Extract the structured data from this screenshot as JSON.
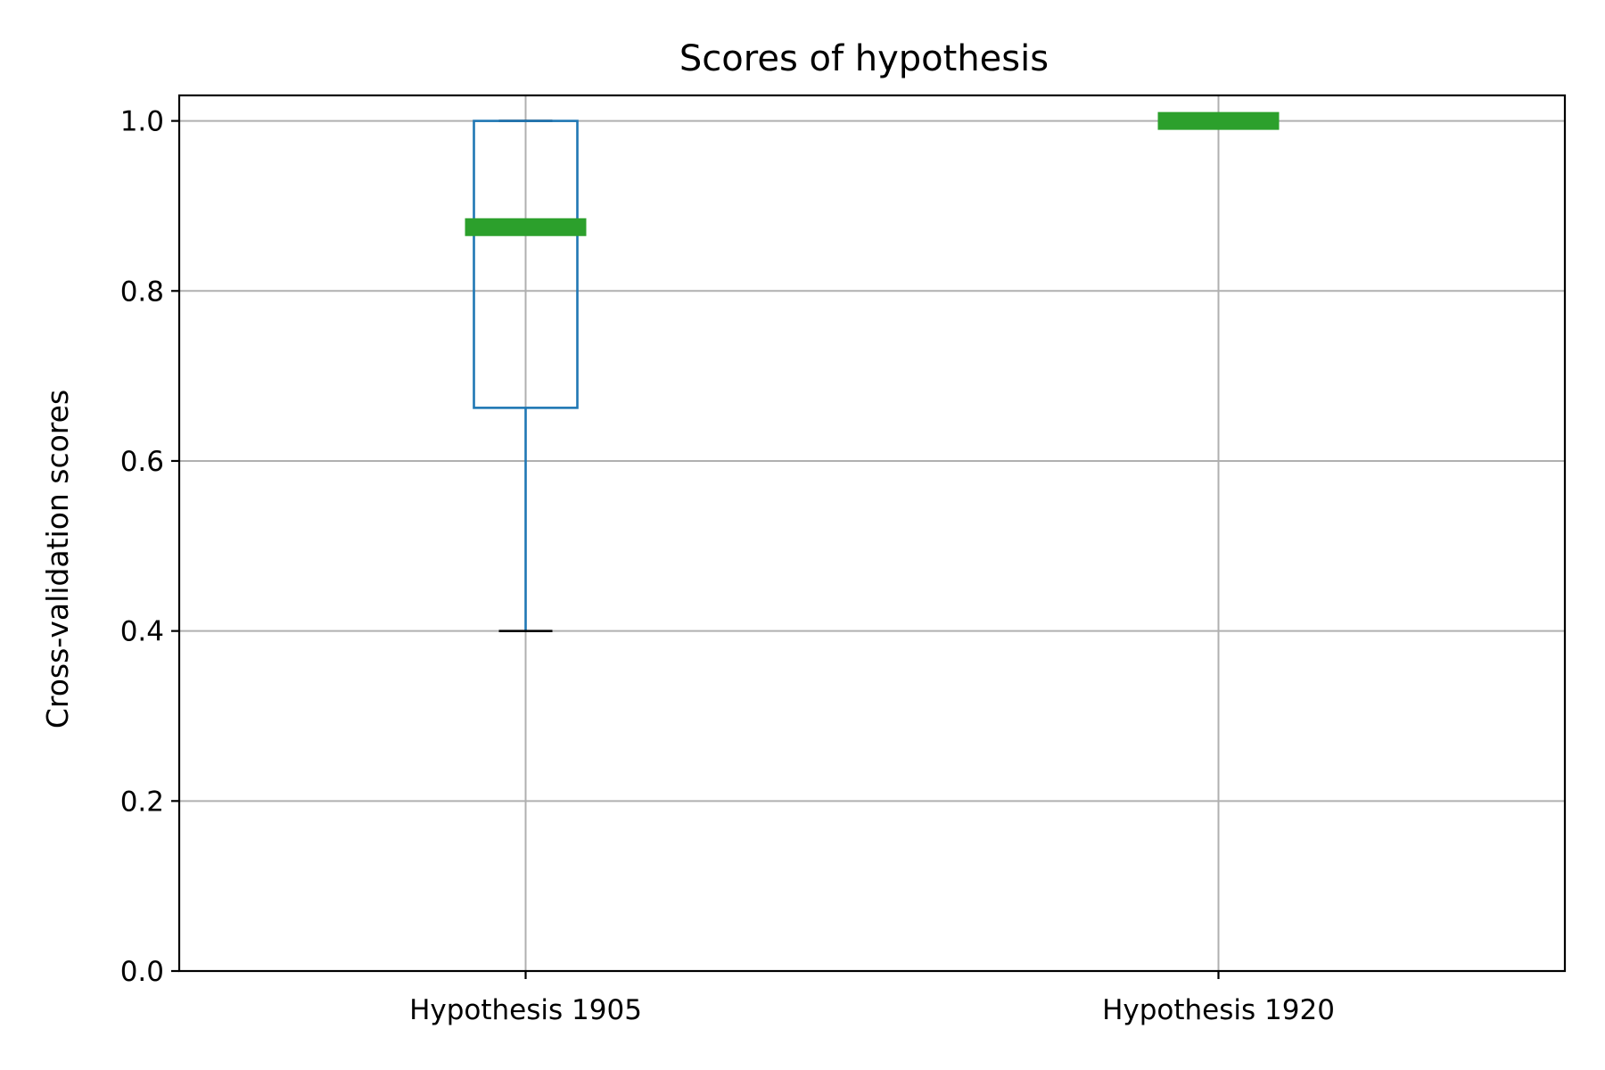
{
  "chart_data": {
    "type": "box",
    "title": "Scores of hypothesis",
    "xlabel": "",
    "ylabel": "Cross-validation scores",
    "ylim": [
      0.0,
      1.03
    ],
    "yticks": [
      "0.0",
      "0.2",
      "0.4",
      "0.6",
      "0.8",
      "1.0"
    ],
    "ytick_values": [
      0.0,
      0.2,
      0.4,
      0.6,
      0.8,
      1.0
    ],
    "grid": true,
    "categories": [
      "Hypothesis 1905",
      "Hypothesis 1920"
    ],
    "boxes": [
      {
        "whisker_low": 0.4,
        "q1": 0.6625,
        "median": 0.875,
        "q3": 1.0,
        "whisker_high": 1.0
      },
      {
        "whisker_low": 1.0,
        "q1": 1.0,
        "median": 1.0,
        "q3": 1.0,
        "whisker_high": 1.0
      }
    ],
    "colors": {
      "box": "#1f77b4",
      "median": "#2ca02c",
      "whisker_cap": "#000000"
    }
  }
}
